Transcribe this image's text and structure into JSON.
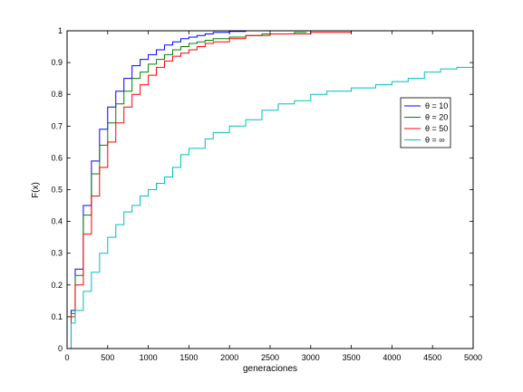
{
  "chart_data": {
    "type": "line",
    "title": "",
    "xlabel": "generaciones",
    "ylabel": "F(x)",
    "xlim": [
      0,
      5000
    ],
    "ylim": [
      0,
      1
    ],
    "x_ticks": [
      0,
      500,
      1000,
      1500,
      2000,
      2500,
      3000,
      3500,
      4000,
      4500,
      5000
    ],
    "y_ticks": [
      0,
      0.1,
      0.2,
      0.3,
      0.4,
      0.5,
      0.6,
      0.7,
      0.8,
      0.9,
      1
    ],
    "x_tick_labels": [
      "0",
      "500",
      "1000",
      "1500",
      "2000",
      "2500",
      "3000",
      "3500",
      "4000",
      "4500",
      "5000"
    ],
    "y_tick_labels": [
      "0",
      "0.1",
      "0.2",
      "0.3",
      "0.4",
      "0.5",
      "0.6",
      "0.7",
      "0.8",
      "0.9",
      "1"
    ],
    "grid": false,
    "legend_position": "right",
    "series": [
      {
        "name": "θ = 10",
        "color": "#0000ff",
        "x": [
          0,
          50,
          100,
          200,
          300,
          400,
          500,
          600,
          700,
          800,
          900,
          1000,
          1100,
          1200,
          1300,
          1400,
          1500,
          1600,
          1700,
          1800,
          2000,
          2200,
          2500,
          2700,
          2800
        ],
        "y": [
          0,
          0.12,
          0.25,
          0.45,
          0.59,
          0.69,
          0.76,
          0.81,
          0.85,
          0.89,
          0.91,
          0.925,
          0.94,
          0.955,
          0.965,
          0.975,
          0.98,
          0.985,
          0.99,
          0.995,
          0.998,
          1,
          1,
          1,
          1
        ]
      },
      {
        "name": "θ = 20",
        "color": "#008000",
        "x": [
          0,
          50,
          100,
          200,
          300,
          400,
          500,
          600,
          700,
          800,
          900,
          1000,
          1100,
          1200,
          1300,
          1400,
          1500,
          1600,
          1700,
          1800,
          2000,
          2200,
          2400,
          2600,
          2800,
          2950
        ],
        "y": [
          0,
          0.11,
          0.23,
          0.42,
          0.55,
          0.64,
          0.71,
          0.77,
          0.81,
          0.85,
          0.87,
          0.895,
          0.91,
          0.925,
          0.94,
          0.95,
          0.96,
          0.965,
          0.97,
          0.975,
          0.98,
          0.985,
          0.99,
          0.99,
          0.995,
          0.995
        ]
      },
      {
        "name": "θ = 50",
        "color": "#ff0000",
        "x": [
          0,
          50,
          100,
          200,
          300,
          400,
          500,
          600,
          700,
          800,
          900,
          1000,
          1100,
          1200,
          1300,
          1400,
          1500,
          1600,
          1700,
          1800,
          2000,
          2200,
          2500,
          3000,
          3500,
          4000,
          4750
        ],
        "y": [
          0,
          0.1,
          0.2,
          0.36,
          0.48,
          0.57,
          0.65,
          0.71,
          0.76,
          0.8,
          0.83,
          0.86,
          0.885,
          0.905,
          0.92,
          0.93,
          0.94,
          0.95,
          0.96,
          0.965,
          0.975,
          0.985,
          0.99,
          0.995,
          1,
          1,
          1
        ]
      },
      {
        "name": "θ = ∞",
        "color": "#00bfbf",
        "x": [
          0,
          50,
          100,
          200,
          300,
          400,
          500,
          600,
          700,
          800,
          900,
          1000,
          1100,
          1200,
          1300,
          1400,
          1500,
          1700,
          1800,
          2000,
          2200,
          2400,
          2600,
          2800,
          3000,
          3200,
          3500,
          3800,
          4000,
          4200,
          4400,
          4600,
          4800,
          5000
        ],
        "y": [
          0,
          0.08,
          0.12,
          0.18,
          0.24,
          0.3,
          0.35,
          0.39,
          0.43,
          0.45,
          0.48,
          0.5,
          0.52,
          0.54,
          0.57,
          0.61,
          0.63,
          0.66,
          0.68,
          0.7,
          0.72,
          0.75,
          0.77,
          0.78,
          0.8,
          0.81,
          0.82,
          0.83,
          0.84,
          0.85,
          0.87,
          0.88,
          0.885,
          0.89
        ]
      }
    ]
  }
}
